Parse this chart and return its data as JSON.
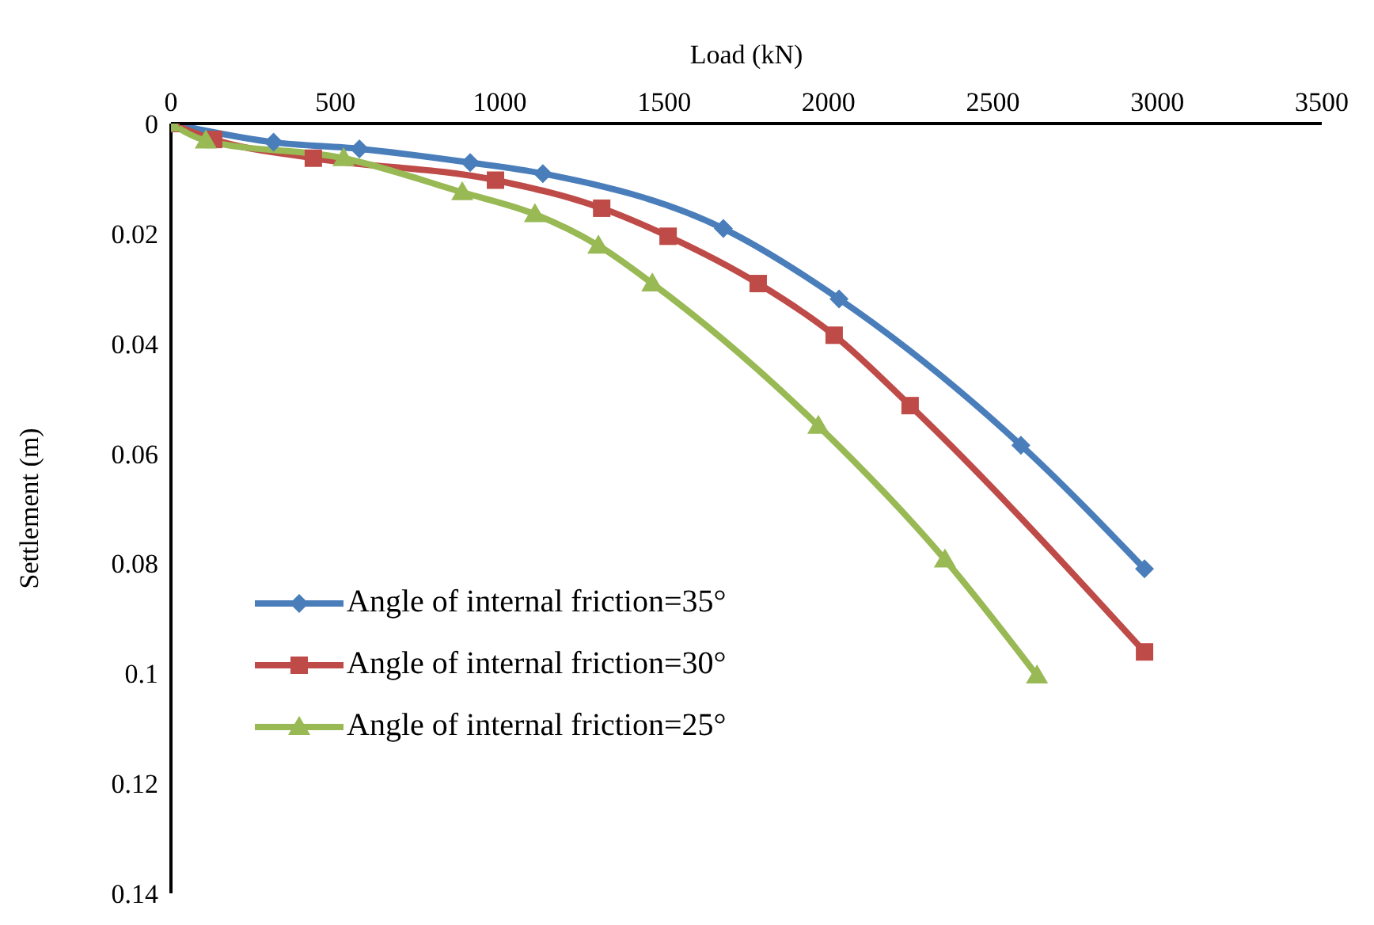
{
  "chart_data": {
    "type": "line",
    "xlabel": "Load (kN)",
    "ylabel": "Settlement (m)",
    "xlim": [
      0,
      3500
    ],
    "xticks": [
      0,
      500,
      1000,
      1500,
      2000,
      2500,
      3000,
      3500
    ],
    "ylim": [
      0.14,
      0
    ],
    "yticks": [
      0,
      0.02,
      0.04,
      0.06,
      0.08,
      0.1,
      0.12,
      0.14
    ],
    "grid": false,
    "legend": "left",
    "line_style": "solid",
    "series": [
      {
        "name": "Angle of internal friction=35°",
        "color": "#4a7ebb",
        "marker": "diamond",
        "x": [
          0,
          312,
          573,
          910,
          1131,
          1680,
          2032,
          2585,
          2961
        ],
        "values": [
          0,
          0.0034,
          0.0046,
          0.0071,
          0.0091,
          0.0191,
          0.0319,
          0.0585,
          0.081
        ]
      },
      {
        "name": "Angle of internal friction=30°",
        "color": "#be4b48",
        "marker": "square",
        "x": [
          0,
          130,
          433,
          987,
          1310,
          1512,
          1786,
          2017,
          2248,
          2961
        ],
        "values": [
          0,
          0.0029,
          0.0063,
          0.0103,
          0.0154,
          0.0205,
          0.0291,
          0.0385,
          0.0513,
          0.0961
        ]
      },
      {
        "name": "Angle of internal friction=25°",
        "color": "#98b954",
        "marker": "triangle",
        "x": [
          0,
          106,
          525,
          886,
          1107,
          1300,
          1464,
          1969,
          2354,
          2634
        ],
        "values": [
          0,
          0.0031,
          0.0063,
          0.0125,
          0.0165,
          0.0222,
          0.0291,
          0.055,
          0.0793,
          0.1004
        ]
      }
    ]
  }
}
